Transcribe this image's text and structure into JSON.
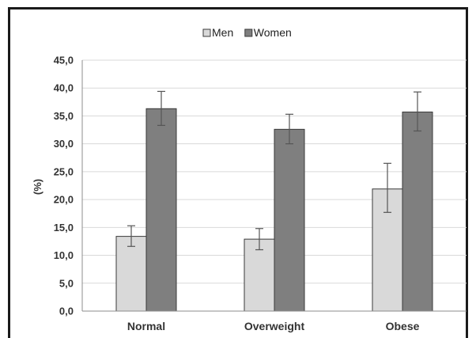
{
  "chart_data": {
    "type": "bar",
    "title": "",
    "xlabel": "",
    "ylabel": "(%)",
    "ylim": [
      0,
      45
    ],
    "yticks": [
      "0,0",
      "5,0",
      "10,0",
      "15,0",
      "20,0",
      "25,0",
      "30,0",
      "35,0",
      "40,0",
      "45,0"
    ],
    "categories": [
      "Normal",
      "Overweight",
      "Obese"
    ],
    "series": [
      {
        "name": "Men",
        "color": "#d9d9d9",
        "values": [
          13.4,
          12.9,
          21.9
        ],
        "err_low": [
          11.6,
          11.0,
          17.7
        ],
        "err_high": [
          15.3,
          14.8,
          26.5
        ]
      },
      {
        "name": "Women",
        "color": "#7f7f7f",
        "values": [
          36.3,
          32.6,
          35.7
        ],
        "err_low": [
          33.3,
          30.0,
          32.3
        ],
        "err_high": [
          39.4,
          35.3,
          39.3
        ]
      }
    ],
    "grid": true,
    "legend": "top-center"
  }
}
